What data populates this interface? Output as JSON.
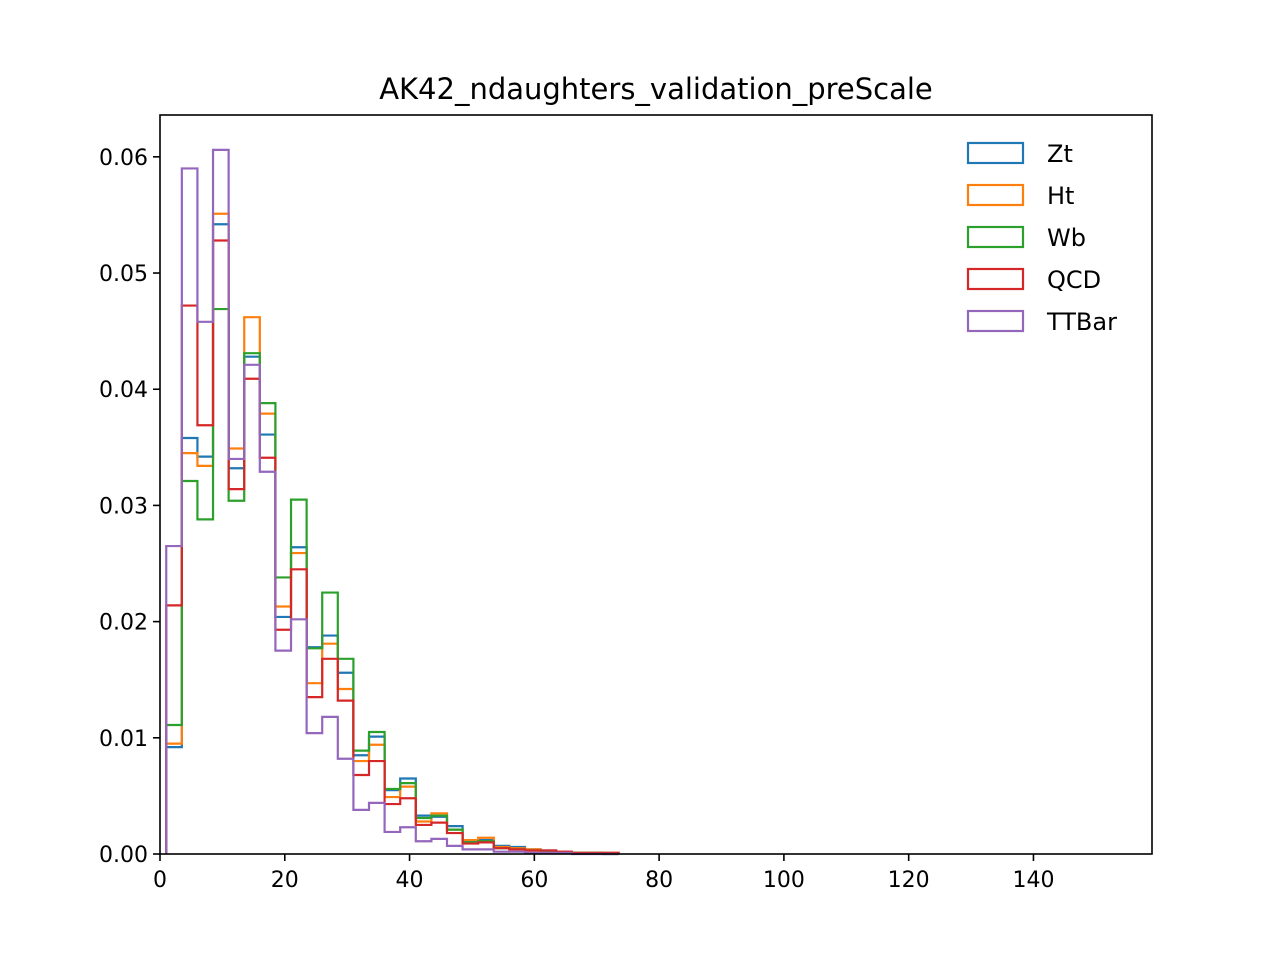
{
  "chart_data": {
    "type": "histogram",
    "title": "AK42_ndaughters_validation_preScale",
    "xlabel": "",
    "ylabel": "",
    "xlim": [
      0,
      159
    ],
    "ylim": [
      0,
      0.0636
    ],
    "x_ticks": [
      0,
      20,
      40,
      60,
      80,
      100,
      120,
      140
    ],
    "x_tick_labels": [
      "0",
      "20",
      "40",
      "60",
      "80",
      "100",
      "120",
      "140"
    ],
    "y_ticks": [
      0.0,
      0.01,
      0.02,
      0.03,
      0.04,
      0.05,
      0.06
    ],
    "y_tick_labels": [
      "0.00",
      "0.01",
      "0.02",
      "0.03",
      "0.04",
      "0.05",
      "0.06"
    ],
    "grid": false,
    "legend_position": "top-right",
    "histtype": "step",
    "bin_edges": [
      1,
      3.5,
      6,
      8.5,
      11,
      13.5,
      16,
      18.5,
      21,
      23.5,
      26,
      28.5,
      31,
      33.5,
      36,
      38.5,
      41,
      43.5,
      46,
      48.5,
      51,
      53.5,
      56,
      58.5,
      61,
      63.5,
      66,
      68.5,
      71,
      73.5
    ],
    "series": [
      {
        "name": "Zt",
        "color": "#1f77b4",
        "values": [
          0.0092,
          0.0358,
          0.0342,
          0.0542,
          0.0332,
          0.0428,
          0.0361,
          0.0204,
          0.0264,
          0.0178,
          0.0188,
          0.0156,
          0.0085,
          0.0101,
          0.0055,
          0.0065,
          0.0033,
          0.0032,
          0.0024,
          0.0011,
          0.0012,
          0.0007,
          0.0006,
          0.0004,
          0.0003,
          0.0002,
          0.0001,
          0.0001,
          0.0001
        ]
      },
      {
        "name": "Ht",
        "color": "#ff7f0e",
        "values": [
          0.0095,
          0.0345,
          0.0334,
          0.0551,
          0.0349,
          0.0462,
          0.0379,
          0.0213,
          0.0259,
          0.0147,
          0.0181,
          0.0142,
          0.008,
          0.0094,
          0.0049,
          0.0058,
          0.0028,
          0.0035,
          0.0021,
          0.0012,
          0.0014,
          0.0006,
          0.0005,
          0.0004,
          0.0002,
          0.0002,
          0.0001,
          0.0001,
          0.0001
        ]
      },
      {
        "name": "Wb",
        "color": "#2ca02c",
        "values": [
          0.0111,
          0.0321,
          0.0288,
          0.0469,
          0.0304,
          0.0431,
          0.0388,
          0.0238,
          0.0305,
          0.0177,
          0.0225,
          0.0168,
          0.0089,
          0.0105,
          0.0056,
          0.0061,
          0.0031,
          0.0033,
          0.0021,
          0.001,
          0.0011,
          0.0005,
          0.0004,
          0.0003,
          0.0002,
          0.0001,
          0.0001,
          0.0001,
          0.0
        ]
      },
      {
        "name": "QCD",
        "color": "#d62728",
        "values": [
          0.0214,
          0.0472,
          0.0369,
          0.0528,
          0.0314,
          0.0409,
          0.0341,
          0.0193,
          0.0245,
          0.0135,
          0.0168,
          0.0132,
          0.0068,
          0.008,
          0.0043,
          0.0048,
          0.0025,
          0.0027,
          0.0018,
          0.0009,
          0.001,
          0.0005,
          0.0004,
          0.0003,
          0.0003,
          0.0002,
          0.0001,
          0.0001,
          0.0001
        ]
      },
      {
        "name": "TTBar",
        "color": "#9467bd",
        "values": [
          0.0265,
          0.059,
          0.0458,
          0.0606,
          0.034,
          0.0421,
          0.0329,
          0.0175,
          0.0202,
          0.0104,
          0.0118,
          0.0082,
          0.0038,
          0.0044,
          0.0019,
          0.0023,
          0.0011,
          0.0013,
          0.0007,
          0.0004,
          0.0004,
          0.0002,
          0.0002,
          0.0001,
          0.0001,
          0.0001,
          0.0,
          0.0,
          0.0
        ]
      }
    ]
  }
}
